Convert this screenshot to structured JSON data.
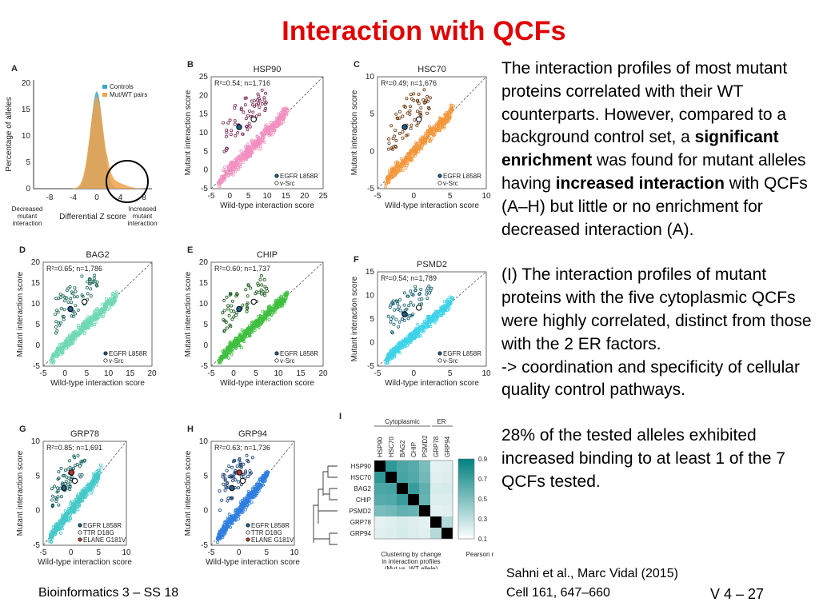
{
  "slide": {
    "title": "Interaction with QCFs",
    "paragraphs": [
      [
        {
          "t": "The interaction profiles of most mutant proteins correlated with their WT counterparts. However, compared to a background control set, a "
        },
        {
          "t": "significant enrichment",
          "b": true
        },
        {
          "t": " was found for mutant alleles having "
        },
        {
          "t": "increased interaction",
          "b": true
        },
        {
          "t": " with QCFs (A–H) but little or no enrichment for decreased interaction (A)."
        }
      ],
      [
        {
          "t": "(I) The interaction profiles of mutant proteins with the five cytoplasmic QCFs were highly correlated, distinct from those with the 2 ER factors."
        },
        {
          "br": true
        },
        {
          "t": "-> coordination and specificity of cellular quality control pathways."
        }
      ],
      [
        {
          "t": "28% of the tested alleles exhibited increased binding to at least 1 of the 7 QCFs tested."
        }
      ]
    ],
    "footer_course": "Bioinformatics 3 – SS 18",
    "citation": [
      "Sahni et al., Marc Vidal (2015)",
      "Cell 161, 647–660"
    ],
    "slide_number": "V 4 –  27"
  },
  "figure": {
    "common": {
      "wt_axis_label": "Wild-type interaction score",
      "mut_axis_label": "Mutant interaction score"
    },
    "panel_a": {
      "letter": "A",
      "ylabel": "Percentage of alleles",
      "xlabel": "Differential Z score",
      "legend": [
        "Controls",
        "Mut/WT pairs"
      ],
      "xticks": [
        "-8",
        "-4",
        "0",
        "4",
        "8"
      ],
      "yticks": [
        "0",
        "5",
        "10",
        "15",
        "20"
      ],
      "left_note": [
        "Decreased",
        "mutant",
        "interaction"
      ],
      "right_note": [
        "Increased",
        "mutant",
        "interaction"
      ],
      "colors": {
        "controls": "#3aa7c9",
        "mut": "#f2a24a"
      }
    },
    "scatter_panels": [
      {
        "letter": "B",
        "name": "HSP90",
        "r2": "R²=0.54; n=1,716",
        "xticks": [
          "-5",
          "0",
          "5",
          "10",
          "15",
          "20",
          "25"
        ],
        "yticks": [
          "-5",
          "0",
          "5",
          "10",
          "15",
          "20",
          "25"
        ],
        "legend": [
          "EGFR L858R",
          "v-Src"
        ],
        "color": "#f28fc0",
        "dark": "#7a2a55"
      },
      {
        "letter": "C",
        "name": "HSC70",
        "r2": "R²=0.49; n=1,676",
        "xticks": [
          "-5",
          "0",
          "5",
          "10"
        ],
        "yticks": [
          "-5",
          "0",
          "5",
          "10"
        ],
        "legend": [
          "EGFR L858R",
          "v-Src"
        ],
        "color": "#f5963a",
        "dark": "#6b3a12"
      },
      {
        "letter": "D",
        "name": "BAG2",
        "r2": "R²=0.65; n=1,786",
        "xticks": [
          "-5",
          "0",
          "5",
          "10",
          "15",
          "20"
        ],
        "yticks": [
          "-5",
          "0",
          "5",
          "10",
          "15",
          "20"
        ],
        "legend": [
          "EGFR L858R",
          "v-Src"
        ],
        "color": "#6fd9b5",
        "dark": "#1f6a5a"
      },
      {
        "letter": "E",
        "name": "CHIP",
        "r2": "R²=0.60; n=1,737",
        "xticks": [
          "-5",
          "0",
          "5",
          "10",
          "15",
          "20"
        ],
        "yticks": [
          "-5",
          "0",
          "5",
          "10",
          "15",
          "20"
        ],
        "legend": [
          "EGFR L858R",
          "v-Src"
        ],
        "color": "#3fbf3f",
        "dark": "#1a5a1a"
      },
      {
        "letter": "F",
        "name": "PSMD2",
        "r2": "R²=0.54; n=1,789",
        "xticks": [
          "-5",
          "0",
          "5",
          "10"
        ],
        "yticks": [
          "-5",
          "0",
          "5",
          "10",
          "15"
        ],
        "legend": [
          "EGFR L858R",
          "v-Src"
        ],
        "color": "#3dd2e8",
        "dark": "#14606e"
      },
      {
        "letter": "G",
        "name": "GRP78",
        "r2": "R²=0.85; n=1,691",
        "xticks": [
          "-5",
          "0",
          "5",
          "10"
        ],
        "yticks": [
          "-5",
          "0",
          "5",
          "10"
        ],
        "legend": [
          "EGFR L858R",
          "TTR D18G",
          "ELANE G181V"
        ],
        "color": "#45c9c9",
        "dark": "#17605e"
      },
      {
        "letter": "H",
        "name": "GRP94",
        "r2": "R²=0.63; n=1,736",
        "xticks": [
          "-5",
          "0",
          "5",
          "10"
        ],
        "yticks": [
          "-5",
          "0",
          "5",
          "10"
        ],
        "legend": [
          "EGFR L858R",
          "TTR D18G",
          "ELANE G181V"
        ],
        "color": "#2f7fe0",
        "dark": "#173e73"
      }
    ],
    "panel_i": {
      "letter": "I",
      "groups": [
        "Cytoplasmic",
        "ER"
      ],
      "labels": [
        "HSP90",
        "HSC70",
        "BAG2",
        "CHIP",
        "PSMD2",
        "GRP78",
        "GRP94"
      ],
      "scale_label": "Pearson r",
      "scale_ticks": [
        "0.9",
        "0.7",
        "0.5",
        "0.3",
        "0.1"
      ],
      "caption": [
        "Clustering by change",
        "in interaction profiles",
        "(Mut vs. WT allele)"
      ],
      "matrix": [
        [
          1.0,
          0.82,
          0.7,
          0.66,
          0.52,
          0.1,
          0.12
        ],
        [
          0.82,
          1.0,
          0.72,
          0.68,
          0.55,
          0.12,
          0.13
        ],
        [
          0.7,
          0.72,
          1.0,
          0.78,
          0.62,
          0.15,
          0.16
        ],
        [
          0.66,
          0.68,
          0.78,
          1.0,
          0.6,
          0.13,
          0.14
        ],
        [
          0.52,
          0.55,
          0.62,
          0.6,
          1.0,
          0.11,
          0.12
        ],
        [
          0.1,
          0.12,
          0.15,
          0.13,
          0.11,
          1.0,
          0.3
        ],
        [
          0.12,
          0.13,
          0.16,
          0.14,
          0.12,
          0.3,
          1.0
        ]
      ]
    }
  }
}
